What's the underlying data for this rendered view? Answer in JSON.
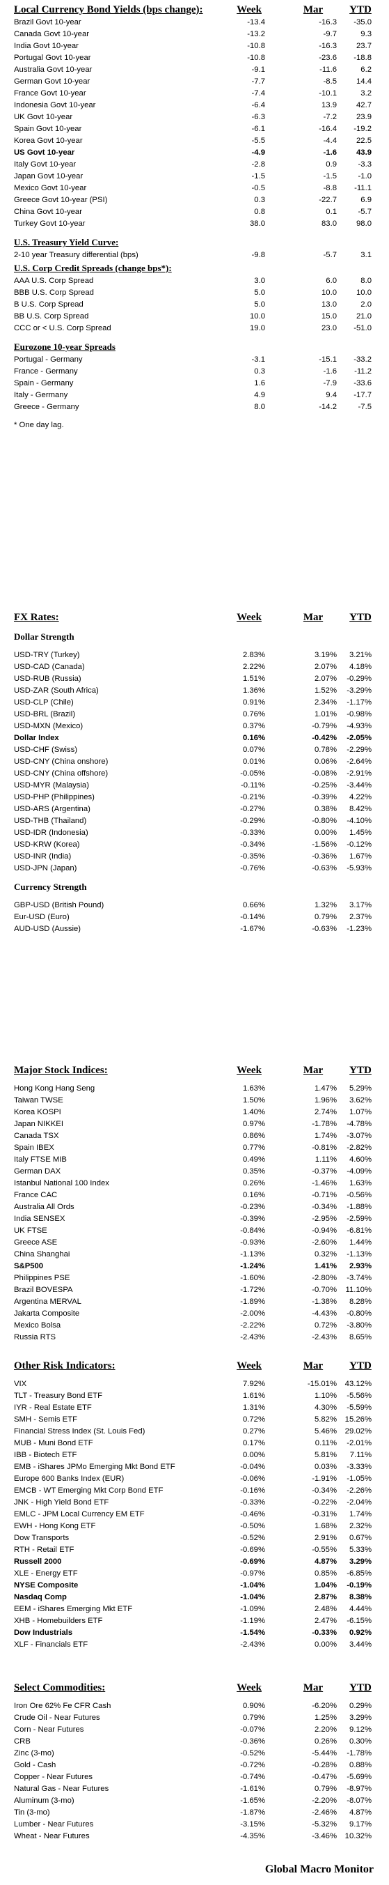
{
  "bond": {
    "title": "Local Currency Bond Yields (bps change):",
    "cols": [
      "Week",
      "Mar",
      "YTD"
    ],
    "rows": [
      [
        "Brazil Govt 10-year",
        "-13.4",
        "-16.3",
        "-35.0",
        false
      ],
      [
        "Canada Govt 10-year",
        "-13.2",
        "-9.7",
        "9.3",
        false
      ],
      [
        "India Govt 10-year",
        "-10.8",
        "-16.3",
        "23.7",
        false
      ],
      [
        "Portugal Govt 10-year",
        "-10.8",
        "-23.6",
        "-18.8",
        false
      ],
      [
        "Australia Govt 10-year",
        "-9.1",
        "-11.6",
        "6.2",
        false
      ],
      [
        "German Govt 10-year",
        "-7.7",
        "-8.5",
        "14.4",
        false
      ],
      [
        "France Govt 10-year",
        "-7.4",
        "-10.1",
        "3.2",
        false
      ],
      [
        "Indonesia Govt 10-year",
        "-6.4",
        "13.9",
        "42.7",
        false
      ],
      [
        "UK Govt 10-year",
        "-6.3",
        "-7.2",
        "23.9",
        false
      ],
      [
        "Spain Govt 10-year",
        "-6.1",
        "-16.4",
        "-19.2",
        false
      ],
      [
        "Korea Govt 10-year",
        "-5.5",
        "-4.4",
        "22.5",
        false
      ],
      [
        "US Govt 10-year",
        "-4.9",
        "-1.6",
        "43.9",
        true
      ],
      [
        "Italy Govt 10-year",
        "-2.8",
        "0.9",
        "-3.3",
        false
      ],
      [
        "Japan Govt 10-year",
        "-1.5",
        "-1.5",
        "-1.0",
        false
      ],
      [
        "Mexico Govt 10-year",
        "-0.5",
        "-8.8",
        "-11.1",
        false
      ],
      [
        "Greece Govt 10-year (PSI)",
        "0.3",
        "-22.7",
        "6.9",
        false
      ],
      [
        "China Govt 10-year",
        "0.8",
        "0.1",
        "-5.7",
        false
      ],
      [
        "Turkey Govt 10-year",
        "38.0",
        "83.0",
        "98.0",
        false
      ]
    ]
  },
  "curve": {
    "title": "U.S. Treasury Yield Curve:",
    "rows": [
      [
        "2-10 year Treasury differential (bps)",
        "-9.8",
        "-5.7",
        "3.1",
        false
      ]
    ]
  },
  "credit": {
    "title": "U.S. Corp Credit Spreads (change bps*):",
    "rows": [
      [
        "AAA U.S. Corp Spread",
        "3.0",
        "6.0",
        "8.0",
        false
      ],
      [
        "BBB U.S. Corp Spread",
        "5.0",
        "10.0",
        "10.0",
        false
      ],
      [
        "B U.S. Corp Spread",
        "5.0",
        "13.0",
        "2.0",
        false
      ],
      [
        "BB U.S. Corp Spread",
        "10.0",
        "15.0",
        "21.0",
        false
      ],
      [
        "CCC or < U.S. Corp Spread",
        "19.0",
        "23.0",
        "-51.0",
        false
      ]
    ]
  },
  "euro": {
    "title": "Eurozone 10-year Spreads",
    "rows": [
      [
        "Portugal - Germany",
        "-3.1",
        "-15.1",
        "-33.2",
        false
      ],
      [
        "France - Germany",
        "0.3",
        "-1.6",
        "-11.2",
        false
      ],
      [
        "Spain - Germany",
        "1.6",
        "-7.9",
        "-33.6",
        false
      ],
      [
        "Italy - Germany",
        "4.9",
        "9.4",
        "-17.7",
        false
      ],
      [
        "Greece - Germany",
        "8.0",
        "-14.2",
        "-7.5",
        false
      ]
    ],
    "note": "* One day lag."
  },
  "fx": {
    "title": "FX Rates:",
    "cols": [
      "Week",
      "Mar",
      "YTD"
    ],
    "strength_title": "Dollar Strength",
    "rows": [
      [
        "USD-TRY (Turkey)",
        "2.83%",
        "3.19%",
        "3.21%",
        false
      ],
      [
        "USD-CAD (Canada)",
        "2.22%",
        "2.07%",
        "4.18%",
        false
      ],
      [
        "USD-RUB (Russia)",
        "1.51%",
        "2.07%",
        "-0.29%",
        false
      ],
      [
        "USD-ZAR (South Africa)",
        "1.36%",
        "1.52%",
        "-3.29%",
        false
      ],
      [
        "USD-CLP (Chile)",
        "0.91%",
        "2.34%",
        "-1.17%",
        false
      ],
      [
        "USD-BRL (Brazil)",
        "0.76%",
        "1.01%",
        "-0.98%",
        false
      ],
      [
        "USD-MXN  (Mexico)",
        "0.37%",
        "-0.79%",
        "-4.93%",
        false
      ],
      [
        "Dollar Index",
        "0.16%",
        "-0.42%",
        "-2.05%",
        true
      ],
      [
        "USD-CHF (Swiss)",
        "0.07%",
        "0.78%",
        "-2.29%",
        false
      ],
      [
        "USD-CNY (China onshore)",
        "0.01%",
        "0.06%",
        "-2.64%",
        false
      ],
      [
        "USD-CNY (China offshore)",
        "-0.05%",
        "-0.08%",
        "-2.91%",
        false
      ],
      [
        "USD-MYR (Malaysia)",
        "-0.11%",
        "-0.25%",
        "-3.44%",
        false
      ],
      [
        "USD-PHP (Philippines)",
        "-0.21%",
        "-0.39%",
        "4.22%",
        false
      ],
      [
        "USD-ARS (Argentina)",
        "-0.27%",
        "0.38%",
        "8.42%",
        false
      ],
      [
        "USD-THB  (Thailand)",
        "-0.29%",
        "-0.80%",
        "-4.10%",
        false
      ],
      [
        "USD-IDR (Indonesia)",
        "-0.33%",
        "0.00%",
        "1.45%",
        false
      ],
      [
        "USD-KRW (Korea)",
        "-0.34%",
        "-1.56%",
        "-0.12%",
        false
      ],
      [
        "USD-INR (India)",
        "-0.35%",
        "-0.36%",
        "1.67%",
        false
      ],
      [
        "USD-JPN (Japan)",
        "-0.76%",
        "-0.63%",
        "-5.93%",
        false
      ]
    ],
    "currency_title": "Currency Strength",
    "currency_rows": [
      [
        "GBP-USD (British Pound)",
        "0.66%",
        "1.32%",
        "3.17%",
        false
      ],
      [
        "Eur-USD (Euro)",
        "-0.14%",
        "0.79%",
        "2.37%",
        false
      ],
      [
        "AUD-USD (Aussie)",
        "-1.67%",
        "-0.63%",
        "-1.23%",
        false
      ]
    ]
  },
  "stocks": {
    "title": "Major Stock Indices:",
    "cols": [
      "Week",
      "Mar",
      "YTD"
    ],
    "rows": [
      [
        "Hong Kong Hang Seng",
        "1.63%",
        "1.47%",
        "5.29%",
        false
      ],
      [
        "Taiwan  TWSE",
        "1.50%",
        "1.96%",
        "3.62%",
        false
      ],
      [
        "Korea KOSPI",
        "1.40%",
        "2.74%",
        "1.07%",
        false
      ],
      [
        "Japan NIKKEI",
        "0.97%",
        "-1.78%",
        "-4.78%",
        false
      ],
      [
        "Canada TSX",
        "0.86%",
        "1.74%",
        "-3.07%",
        false
      ],
      [
        "Spain IBEX",
        "0.77%",
        "-0.81%",
        "-2.82%",
        false
      ],
      [
        "Italy FTSE MIB",
        "0.49%",
        "1.11%",
        "4.60%",
        false
      ],
      [
        "German DAX",
        "0.35%",
        "-0.37%",
        "-4.09%",
        false
      ],
      [
        "Istanbul National 100 Index",
        "0.26%",
        "-1.46%",
        "1.63%",
        false
      ],
      [
        "France CAC",
        "0.16%",
        "-0.71%",
        "-0.56%",
        false
      ],
      [
        "Australia All Ords",
        "-0.23%",
        "-0.34%",
        "-1.88%",
        false
      ],
      [
        "India SENSEX",
        "-0.39%",
        "-2.95%",
        "-2.59%",
        false
      ],
      [
        "UK FTSE",
        "-0.84%",
        "-0.94%",
        "-6.81%",
        false
      ],
      [
        "Greece ASE",
        "-0.93%",
        "-2.60%",
        "1.44%",
        false
      ],
      [
        "China Shanghai",
        "-1.13%",
        "0.32%",
        "-1.13%",
        false
      ],
      [
        "S&P500",
        "-1.24%",
        "1.41%",
        "2.93%",
        true
      ],
      [
        "Philippines PSE",
        "-1.60%",
        "-2.80%",
        "-3.74%",
        false
      ],
      [
        "Brazil BOVESPA",
        "-1.72%",
        "-0.70%",
        "11.10%",
        false
      ],
      [
        "Argentina MERVAL",
        "-1.89%",
        "-1.38%",
        "8.28%",
        false
      ],
      [
        "Jakarta Composite",
        "-2.00%",
        "-4.43%",
        "-0.80%",
        false
      ],
      [
        "Mexico Bolsa",
        "-2.22%",
        "0.72%",
        "-3.80%",
        false
      ],
      [
        "Russia RTS",
        "-2.43%",
        "-2.43%",
        "8.65%",
        false
      ]
    ]
  },
  "risk": {
    "title": "Other Risk Indicators:",
    "cols": [
      "Week",
      "Mar",
      "YTD"
    ],
    "rows": [
      [
        "VIX",
        "7.92%",
        "-15.01%",
        "43.12%",
        false
      ],
      [
        "TLT - Treasury Bond ETF",
        "1.61%",
        "1.10%",
        "-5.56%",
        false
      ],
      [
        "IYR - Real Estate ETF",
        "1.31%",
        "4.30%",
        "-5.59%",
        false
      ],
      [
        "SMH - Semis ETF",
        "0.72%",
        "5.82%",
        "15.26%",
        false
      ],
      [
        "Financial Stress Index (St. Louis Fed)",
        "0.27%",
        "5.46%",
        "29.02%",
        false
      ],
      [
        "MUB - Muni Bond ETF",
        "0.17%",
        "0.11%",
        "-2.01%",
        false
      ],
      [
        "IBB - Biotech ETF",
        "0.00%",
        "5.81%",
        "7.11%",
        false
      ],
      [
        "EMB - iShares JPMo Emerging Mkt Bond ETF",
        "-0.04%",
        "0.03%",
        "-3.33%",
        false
      ],
      [
        "Europe 600 Banks Index (EUR)",
        "-0.06%",
        "-1.91%",
        "-1.05%",
        false
      ],
      [
        "EMCB - WT Emerging Mkt Corp Bond ETF",
        "-0.16%",
        "-0.34%",
        "-2.26%",
        false
      ],
      [
        "JNK - High Yield Bond ETF",
        "-0.33%",
        "-0.22%",
        "-2.04%",
        false
      ],
      [
        "EMLC - JPM Local Currency EM ETF",
        "-0.46%",
        "-0.31%",
        "1.74%",
        false
      ],
      [
        "EWH - Hong Kong ETF",
        "-0.50%",
        "1.68%",
        "2.32%",
        false
      ],
      [
        "Dow Transports",
        "-0.52%",
        "2.91%",
        "0.67%",
        false
      ],
      [
        "RTH - Retail ETF",
        "-0.69%",
        "-0.55%",
        "5.33%",
        false
      ],
      [
        "Russell 2000",
        "-0.69%",
        "4.87%",
        "3.29%",
        true
      ],
      [
        "XLE - Energy ETF",
        "-0.97%",
        "0.85%",
        "-6.85%",
        false
      ],
      [
        "NYSE Composite",
        "-1.04%",
        "1.04%",
        "-0.19%",
        true
      ],
      [
        "Nasdaq Comp",
        "-1.04%",
        "2.87%",
        "8.38%",
        true
      ],
      [
        "EEM - iShares Emerging Mkt ETF",
        "-1.09%",
        "2.48%",
        "4.44%",
        false
      ],
      [
        "XHB - Homebuilders ETF",
        "-1.19%",
        "2.47%",
        "-6.15%",
        false
      ],
      [
        "Dow Industrials",
        "-1.54%",
        "-0.33%",
        "0.92%",
        true
      ],
      [
        "XLF - Financials ETF",
        "-2.43%",
        "0.00%",
        "3.44%",
        false
      ]
    ]
  },
  "commod": {
    "title": "Select Commodities:",
    "cols": [
      "Week",
      "Mar",
      "YTD"
    ],
    "rows": [
      [
        "Iron Ore 62% Fe CFR Cash",
        "0.90%",
        "-6.20%",
        "0.29%",
        false
      ],
      [
        "Crude Oil - Near Futures",
        "0.79%",
        "1.25%",
        "3.29%",
        false
      ],
      [
        "Corn - Near Futures",
        "-0.07%",
        "2.20%",
        "9.12%",
        false
      ],
      [
        "CRB",
        "-0.36%",
        "0.26%",
        "0.30%",
        false
      ],
      [
        "Zinc (3-mo)",
        "-0.52%",
        "-5.44%",
        "-1.78%",
        false
      ],
      [
        "Gold - Cash",
        "-0.72%",
        "-0.28%",
        "0.88%",
        false
      ],
      [
        "Copper - Near Futures",
        "-0.74%",
        "-0.47%",
        "-5.69%",
        false
      ],
      [
        "Natural Gas - Near Futures",
        "-1.61%",
        "0.79%",
        "-8.97%",
        false
      ],
      [
        "Aluminum (3-mo)",
        "-1.65%",
        "-2.20%",
        "-8.07%",
        false
      ],
      [
        "Tin (3-mo)",
        "-1.87%",
        "-2.46%",
        "4.87%",
        false
      ],
      [
        "Lumber - Near Futures",
        "-3.15%",
        "-5.32%",
        "9.17%",
        false
      ],
      [
        "Wheat - Near Futures",
        "-4.35%",
        "-3.46%",
        "10.32%",
        false
      ]
    ]
  },
  "footer": "Global Macro Monitor"
}
